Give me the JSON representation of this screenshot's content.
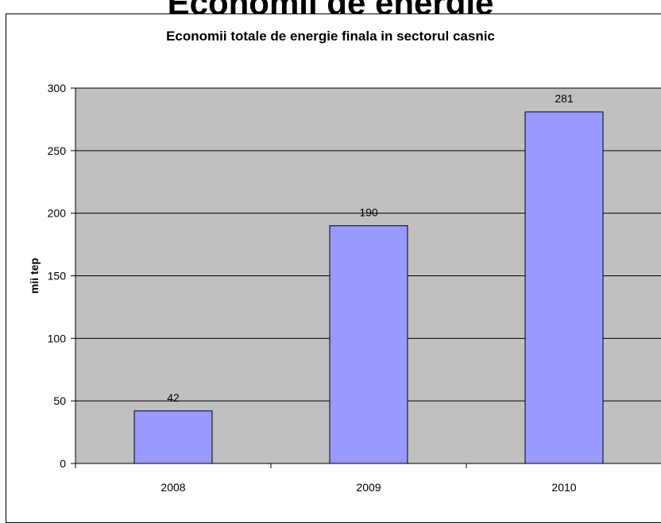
{
  "page": {
    "partial_heading": "Economii de energie",
    "colors": {
      "plot_background": "#c0c0c0",
      "bar_fill": "#9999ff",
      "bar_stroke": "#000000",
      "gridline": "#000000"
    }
  },
  "chart_data": {
    "type": "bar",
    "title": "Economii totale de energie finala in sectorul casnic",
    "xlabel": "",
    "ylabel": "mii tep",
    "categories": [
      "2008",
      "2009",
      "2010"
    ],
    "values": [
      42,
      190,
      281
    ],
    "data_labels": [
      "42",
      "190",
      "281"
    ],
    "ylim": [
      0,
      300
    ],
    "yticks": [
      0,
      50,
      100,
      150,
      200,
      250,
      300
    ],
    "grid": true,
    "legend": "none"
  }
}
